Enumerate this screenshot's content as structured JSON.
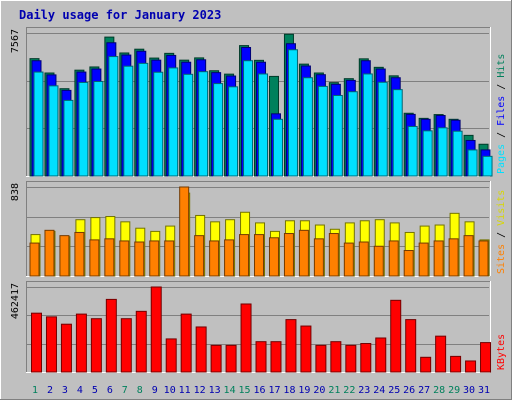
{
  "chart_data": {
    "type": "bar",
    "title": "Daily usage for January 2023",
    "categories": [
      "1",
      "2",
      "3",
      "4",
      "5",
      "6",
      "7",
      "8",
      "9",
      "10",
      "11",
      "12",
      "13",
      "14",
      "15",
      "16",
      "17",
      "18",
      "19",
      "20",
      "21",
      "22",
      "23",
      "24",
      "25",
      "26",
      "27",
      "28",
      "29",
      "30",
      "31"
    ],
    "weekend_days": [
      "1",
      "7",
      "8",
      "14",
      "15",
      "21",
      "22",
      "28",
      "29"
    ],
    "panels": [
      {
        "ymax_label": "7567",
        "ymax": 7567,
        "right_labels": [
          {
            "text": "Hits",
            "color": "#00805c"
          },
          {
            "text": " / ",
            "color": "#000000"
          },
          {
            "text": "Files",
            "color": "#0000ff"
          },
          {
            "text": " / ",
            "color": "#000000"
          },
          {
            "text": "Pages",
            "color": "#00e0ff"
          }
        ],
        "series": [
          {
            "name": "Hits",
            "color": "#00805c",
            "values": [
              6210,
              5450,
              4620,
              5600,
              5770,
              7350,
              6510,
              6710,
              6240,
              6490,
              6130,
              6250,
              5570,
              5390,
              6900,
              6120,
              5270,
              7500,
              5920,
              5450,
              4940,
              5150,
              6200,
              5750,
              5300,
              3320,
              3050,
              3250,
              3000,
              2150,
              1680
            ]
          },
          {
            "name": "Files",
            "color": "#0000ff",
            "values": [
              6100,
              5350,
              4530,
              5500,
              5660,
              7050,
              6400,
              6600,
              6130,
              6380,
              6020,
              6150,
              5470,
              5290,
              6800,
              6020,
              3290,
              7000,
              5820,
              5360,
              4850,
              5060,
              6100,
              5660,
              5200,
              3260,
              3000,
              3200,
              2950,
              1880,
              1380
            ]
          },
          {
            "name": "Pages",
            "color": "#00e0ff",
            "values": [
              5500,
              4770,
              4000,
              4950,
              5000,
              6320,
              5810,
              5960,
              5490,
              5720,
              5380,
              5520,
              4890,
              4720,
              6100,
              5400,
              3000,
              6680,
              5200,
              4740,
              4260,
              4460,
              5400,
              4960,
              4570,
              2620,
              2390,
              2550,
              2370,
              1380,
              1040
            ]
          }
        ]
      },
      {
        "ymax_label": "838",
        "ymax": 838,
        "right_labels": [
          {
            "text": "Visits",
            "color": "#d8d800"
          },
          {
            "text": " / ",
            "color": "#000000"
          },
          {
            "text": "Sites",
            "color": "#ff8000"
          }
        ],
        "series": [
          {
            "name": "Visits",
            "color": "#ffff00",
            "values": [
              390,
              420,
              370,
              530,
              550,
              560,
              510,
              450,
              420,
              470,
              780,
              570,
              510,
              530,
              600,
              500,
              420,
              520,
              520,
              480,
              440,
              500,
              520,
              530,
              500,
              410,
              470,
              480,
              590,
              510,
              340
            ]
          },
          {
            "name": "Sites",
            "color": "#ff8000",
            "values": [
              310,
              430,
              380,
              410,
              340,
              350,
              330,
              320,
              330,
              330,
              838,
              380,
              330,
              340,
              390,
              390,
              360,
              400,
              430,
              350,
              400,
              310,
              320,
              280,
              330,
              240,
              310,
              330,
              350,
              380,
              330
            ]
          }
        ]
      },
      {
        "ymax_label": "462417",
        "ymax": 462417,
        "right_labels": [
          {
            "text": "KBytes",
            "color": "#ff0000"
          }
        ],
        "series": [
          {
            "name": "KBytes",
            "color": "#ff0000",
            "values": [
              320000,
              300000,
              260000,
              315000,
              290000,
              395000,
              290000,
              330000,
              462417,
              180000,
              315000,
              245000,
              145000,
              145000,
              370000,
              165000,
              165000,
              285000,
              250000,
              145000,
              165000,
              145000,
              155000,
              185000,
              390000,
              285000,
              80000,
              195000,
              85000,
              60000,
              160000
            ]
          }
        ]
      }
    ]
  }
}
